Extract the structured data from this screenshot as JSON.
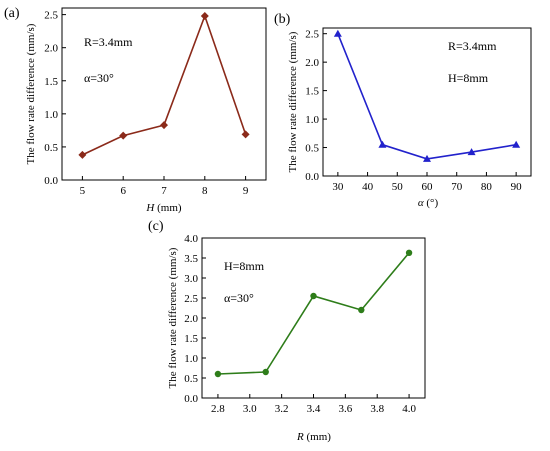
{
  "chart_data": [
    {
      "panel": "(a)",
      "type": "line",
      "ylabel": "The flow rate difference (mm/s)",
      "xlabel_var": "H",
      "xlabel_unit": " (mm)",
      "x": [
        5,
        6,
        7,
        8,
        9
      ],
      "series": [
        {
          "values": [
            0.38,
            0.67,
            0.83,
            2.48,
            0.69
          ],
          "color": "#8b2a1a",
          "marker": "diamond"
        }
      ],
      "xlim": [
        4.5,
        9.5
      ],
      "ylim": [
        0,
        2.6
      ],
      "xticks": [
        "5",
        "6",
        "7",
        "8",
        "9"
      ],
      "yticks": [
        "0.0",
        "0.5",
        "1.0",
        "1.5",
        "2.0",
        "2.5"
      ],
      "annotations": [
        "R=3.4mm",
        "α=30°"
      ]
    },
    {
      "panel": "(b)",
      "type": "line",
      "ylabel": "The flow rate  difference (mm/s)",
      "xlabel_var": "α",
      "xlabel_unit": " (°)",
      "x": [
        30,
        45,
        60,
        75,
        90
      ],
      "series": [
        {
          "values": [
            2.5,
            0.55,
            0.3,
            0.42,
            0.55
          ],
          "color": "#2222cc",
          "marker": "triangle"
        }
      ],
      "xlim": [
        25,
        95
      ],
      "ylim": [
        0,
        2.6
      ],
      "xticks": [
        "30",
        "40",
        "50",
        "60",
        "70",
        "80",
        "90"
      ],
      "yticks": [
        "0.0",
        "0.5",
        "1.0",
        "1.5",
        "2.0",
        "2.5"
      ],
      "annotations": [
        "R=3.4mm",
        "H=8mm"
      ]
    },
    {
      "panel": "(c)",
      "type": "line",
      "ylabel": "The flow rate  difference (mm/s)",
      "xlabel_var": "R",
      "xlabel_unit": " (mm)",
      "x": [
        2.8,
        3.1,
        3.4,
        3.7,
        4.0
      ],
      "series": [
        {
          "values": [
            0.6,
            0.65,
            2.55,
            2.2,
            3.63
          ],
          "color": "#2e7d1a",
          "marker": "circle"
        }
      ],
      "xlim": [
        2.7,
        4.1
      ],
      "ylim": [
        0,
        4.0
      ],
      "xticks": [
        "2.8",
        "3.0",
        "3.2",
        "3.4",
        "3.6",
        "3.8",
        "4.0"
      ],
      "yticks": [
        "0.0",
        "0.5",
        "1.0",
        "1.5",
        "2.0",
        "2.5",
        "3.0",
        "3.5",
        "4.0"
      ],
      "annotations": [
        "H=8mm",
        "α=30°"
      ]
    }
  ]
}
